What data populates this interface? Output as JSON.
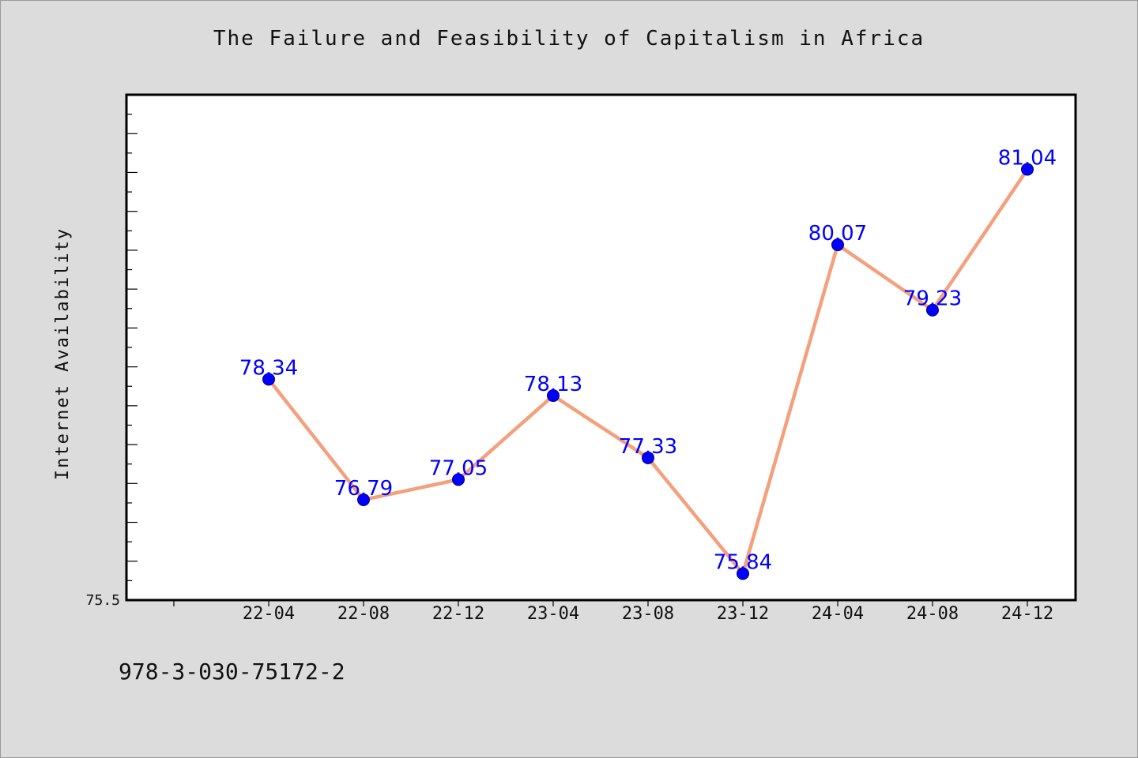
{
  "chart_data": {
    "type": "line",
    "title": "The Failure and Feasibility of Capitalism in Africa",
    "xlabel": "",
    "ylabel": "Internet Availability",
    "categories": [
      "22-04",
      "22-08",
      "22-12",
      "23-04",
      "23-08",
      "23-12",
      "24-04",
      "24-08",
      "24-12"
    ],
    "series": [
      {
        "values": [
          78.34,
          76.79,
          77.05,
          78.13,
          77.33,
          75.84,
          80.07,
          79.23,
          81.04
        ],
        "labels": [
          "78.34",
          "76.79",
          "77.05",
          "78.13",
          "77.33",
          "75.84",
          "80.07",
          "79.23",
          "81.04"
        ]
      }
    ],
    "ylim": [
      75.5,
      82.0
    ],
    "ytick_labels": [
      "75.5"
    ],
    "grid": false,
    "colors": {
      "line": "#f4a07c",
      "marker": "#0000ff",
      "data_label": "#0000ff",
      "plot_background": "#ffffff",
      "page_background": "#dcdcdc"
    }
  },
  "caption": "978-3-030-75172-2"
}
